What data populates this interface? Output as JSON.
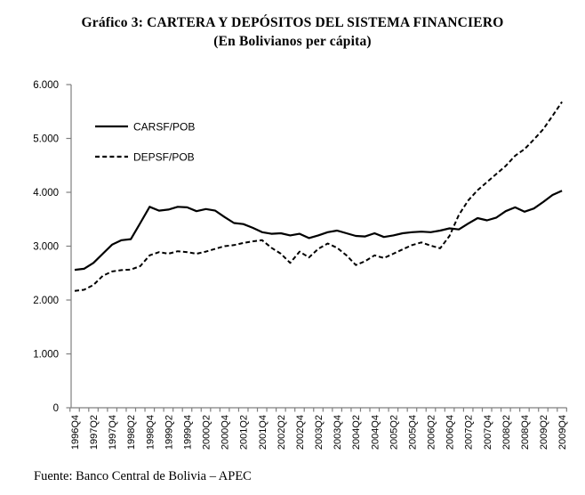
{
  "title": "Gráfico 3: CARTERA Y DEPÓSITOS DEL SISTEMA FINANCIERO",
  "subtitle": "(En Bolivianos per cápita)",
  "source": "Fuente: Banco Central de Bolivia – APEC",
  "chart_data": {
    "type": "line",
    "title": "Gráfico 3: CARTERA Y DEPÓSITOS DEL SISTEMA FINANCIERO",
    "subtitle": "(En Bolivianos per cápita)",
    "ylim": [
      0,
      6000
    ],
    "y_tick_labels": [
      "0",
      "1.000",
      "2.000",
      "3.000",
      "4.000",
      "5.000",
      "6.000"
    ],
    "x_tick_labels": [
      "1996Q4",
      "1997Q2",
      "1997Q4",
      "1998Q2",
      "1998Q4",
      "1999Q2",
      "1999Q4",
      "2000Q2",
      "2000Q4",
      "2001Q2",
      "2001Q4",
      "2002Q2",
      "2002Q4",
      "2003Q2",
      "2003Q4",
      "2004Q2",
      "2004Q4",
      "2005Q2",
      "2005Q4",
      "2006Q2",
      "2006Q4",
      "2007Q2",
      "2007Q4",
      "2008Q2",
      "2008Q4",
      "2009Q2",
      "2009Q4"
    ],
    "x": [
      "1996Q4",
      "1997Q1",
      "1997Q2",
      "1997Q3",
      "1997Q4",
      "1998Q1",
      "1998Q2",
      "1998Q3",
      "1998Q4",
      "1999Q1",
      "1999Q2",
      "1999Q3",
      "1999Q4",
      "2000Q1",
      "2000Q2",
      "2000Q3",
      "2000Q4",
      "2001Q1",
      "2001Q2",
      "2001Q3",
      "2001Q4",
      "2002Q1",
      "2002Q2",
      "2002Q3",
      "2002Q4",
      "2003Q1",
      "2003Q2",
      "2003Q3",
      "2003Q4",
      "2004Q1",
      "2004Q2",
      "2004Q3",
      "2004Q4",
      "2005Q1",
      "2005Q2",
      "2005Q3",
      "2005Q4",
      "2006Q1",
      "2006Q2",
      "2006Q3",
      "2006Q4",
      "2007Q1",
      "2007Q2",
      "2007Q3",
      "2007Q4",
      "2008Q1",
      "2008Q2",
      "2008Q3",
      "2008Q4",
      "2009Q1",
      "2009Q2",
      "2009Q3",
      "2009Q4"
    ],
    "series": [
      {
        "name": "CARSF/POB",
        "line_style": "solid",
        "color": "#000000",
        "values": [
          2560,
          2580,
          2690,
          2860,
          3030,
          3110,
          3130,
          3430,
          3730,
          3660,
          3680,
          3730,
          3720,
          3650,
          3690,
          3660,
          3540,
          3430,
          3410,
          3340,
          3260,
          3230,
          3240,
          3200,
          3230,
          3150,
          3200,
          3260,
          3290,
          3240,
          3190,
          3180,
          3240,
          3170,
          3200,
          3240,
          3260,
          3270,
          3260,
          3290,
          3330,
          3310,
          3420,
          3520,
          3480,
          3530,
          3650,
          3720,
          3640,
          3700,
          3820,
          3950,
          4030
        ]
      },
      {
        "name": "DEPSF/POB",
        "line_style": "dashed",
        "color": "#000000",
        "values": [
          2170,
          2190,
          2280,
          2450,
          2530,
          2555,
          2565,
          2630,
          2830,
          2890,
          2860,
          2905,
          2890,
          2860,
          2900,
          2950,
          3000,
          3020,
          3060,
          3090,
          3110,
          2970,
          2860,
          2690,
          2900,
          2790,
          2950,
          3050,
          2970,
          2830,
          2650,
          2720,
          2830,
          2780,
          2860,
          2940,
          3020,
          3070,
          3010,
          2960,
          3190,
          3580,
          3850,
          4040,
          4190,
          4340,
          4490,
          4680,
          4800,
          4980,
          5170,
          5420,
          5680
        ]
      }
    ],
    "grid": false,
    "legend_position": "inside-top-left",
    "axis_color": "#7f7f7f",
    "text_color": "#000000"
  }
}
